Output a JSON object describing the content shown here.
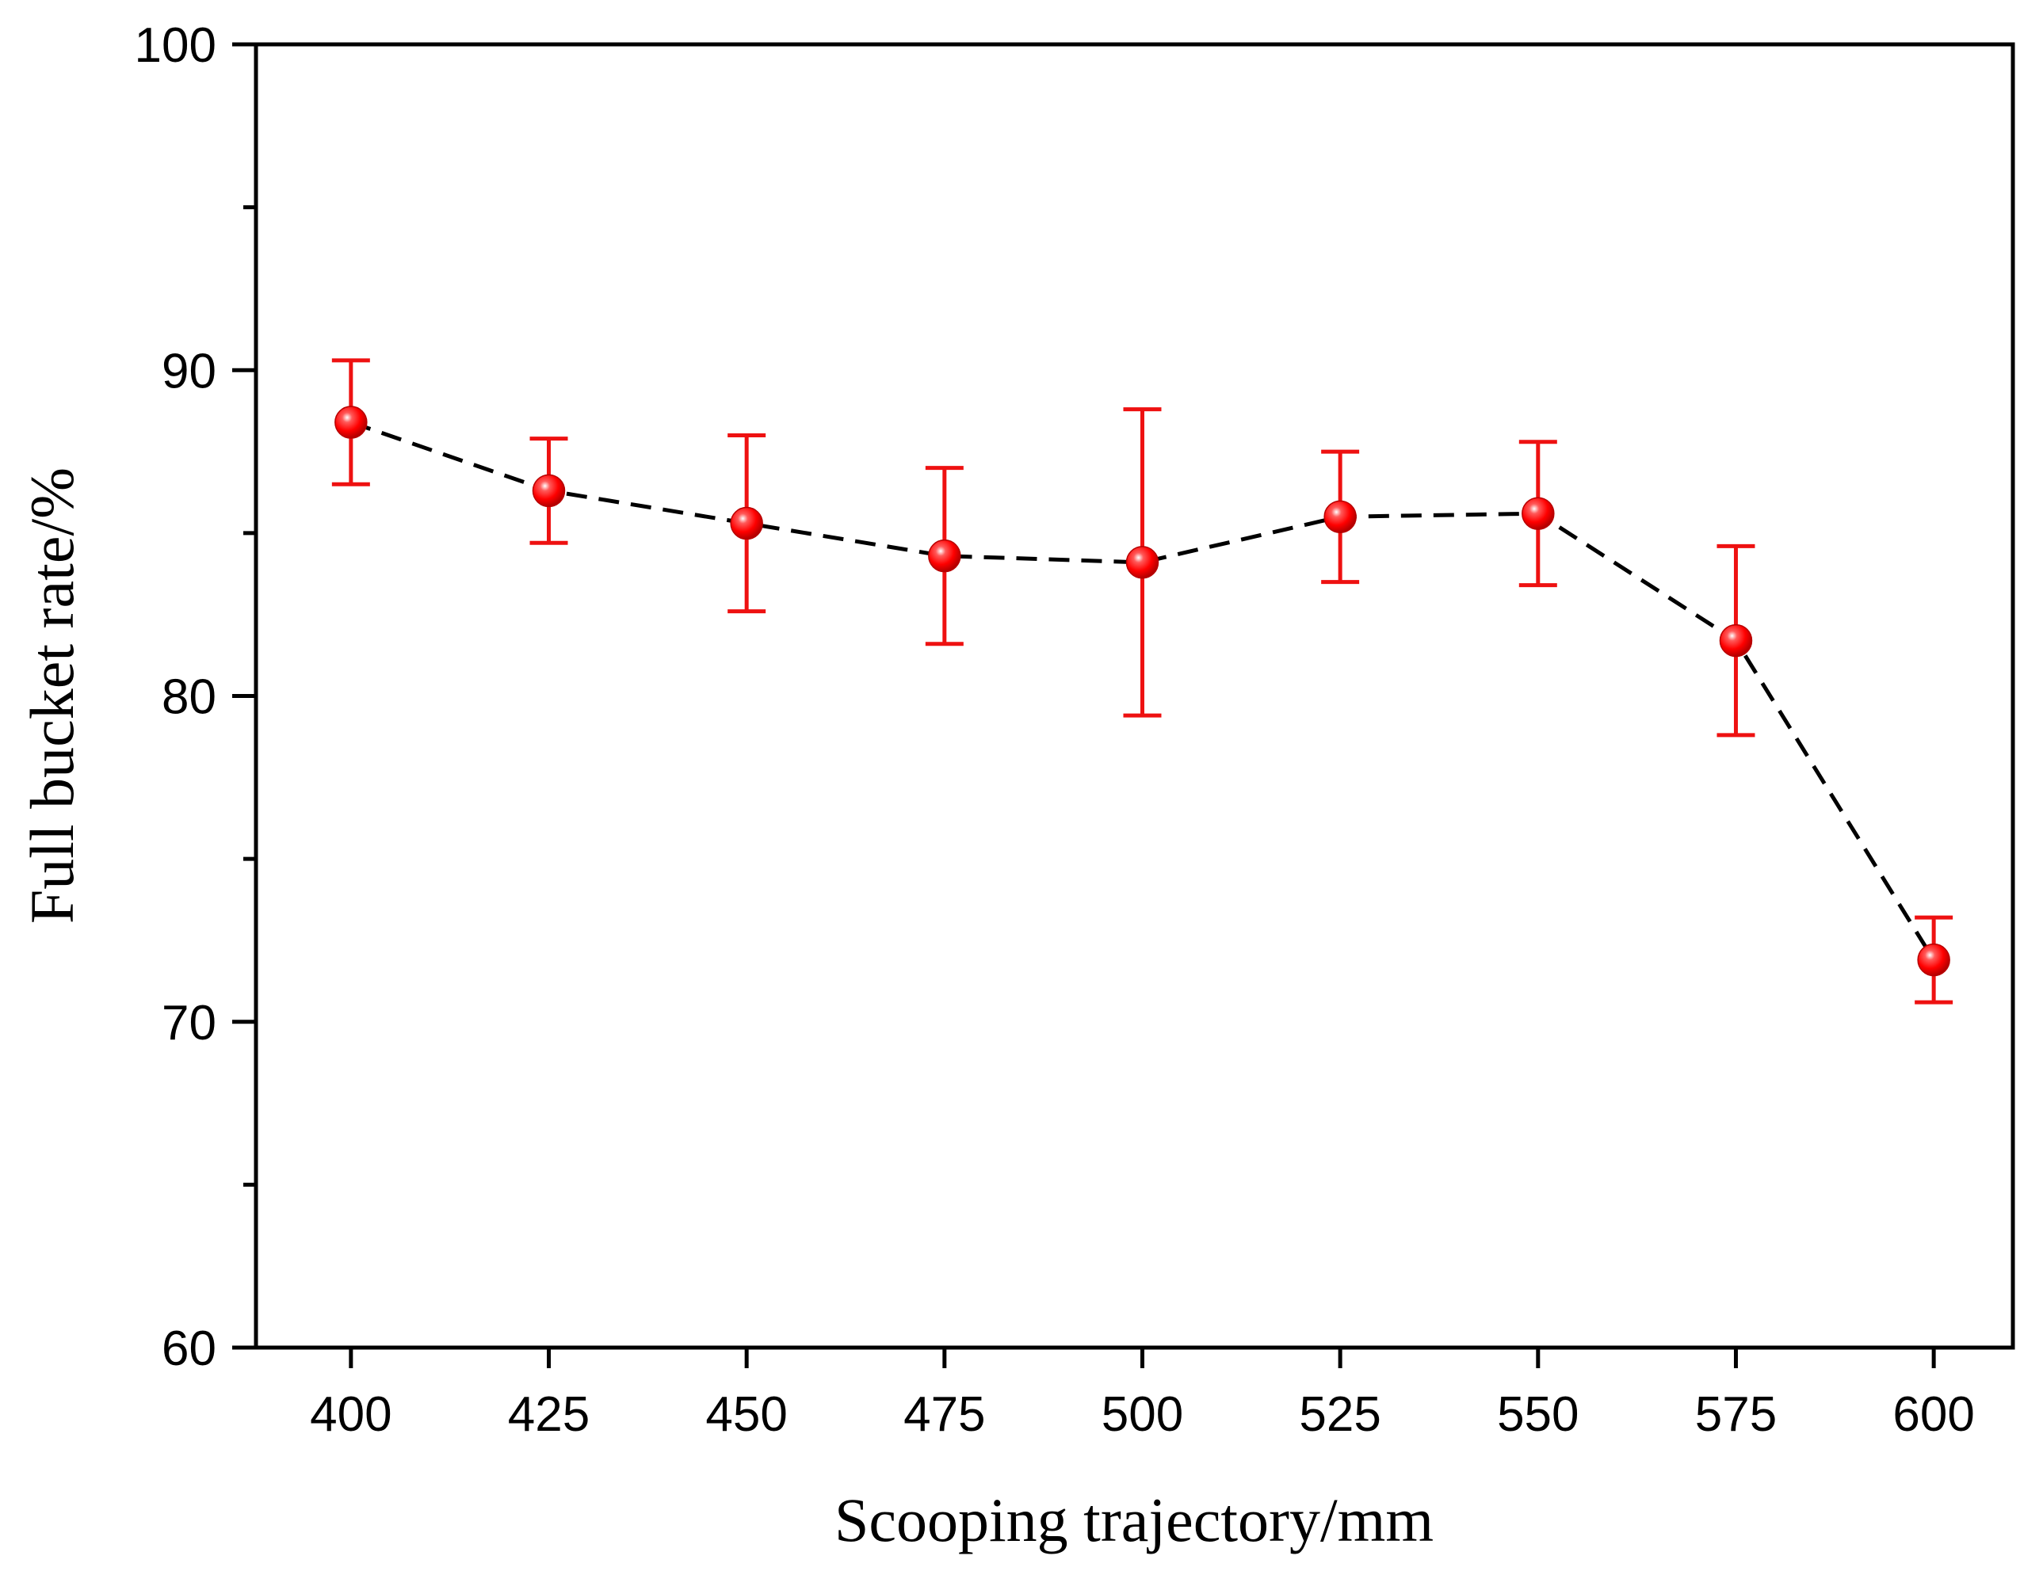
{
  "chart_data": {
    "type": "scatter",
    "title": "",
    "xlabel": "Scooping trajectory/mm",
    "ylabel": "Full bucket rate/%",
    "xlim": [
      388,
      610
    ],
    "ylim": [
      60,
      100
    ],
    "x_ticks": [
      400,
      425,
      450,
      475,
      500,
      525,
      550,
      575,
      600
    ],
    "x_tick_labels": [
      "400",
      "425",
      "450",
      "475",
      "500",
      "525",
      "550",
      "575",
      "600"
    ],
    "y_major_ticks": [
      60,
      70,
      80,
      90,
      100
    ],
    "y_tick_labels": [
      "60",
      "70",
      "80",
      "90",
      "100"
    ],
    "y_minor_ticks": [
      65,
      75,
      85,
      95
    ],
    "grid": false,
    "line_style": "dashed",
    "series": [
      {
        "name": "Full bucket rate",
        "color": "#ee1111",
        "line_color": "#000000",
        "x": [
          400,
          425,
          450,
          475,
          500,
          525,
          550,
          575,
          600
        ],
        "y": [
          88.4,
          86.3,
          85.3,
          84.3,
          84.1,
          85.5,
          85.6,
          81.7,
          71.9
        ],
        "error_upper": [
          90.3,
          87.9,
          88.0,
          87.0,
          88.8,
          87.5,
          87.8,
          84.6,
          73.2
        ],
        "error_lower": [
          86.5,
          84.7,
          82.6,
          81.6,
          79.4,
          83.5,
          83.4,
          78.8,
          70.6
        ]
      }
    ]
  }
}
